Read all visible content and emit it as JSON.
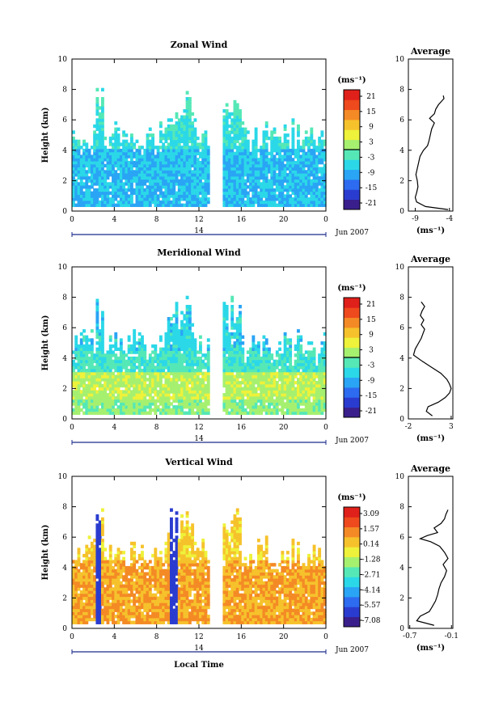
{
  "chart_data": [
    {
      "type": "heatmap",
      "title": "Zonal Wind",
      "ylabel": "Height (km)",
      "xlabel": "",
      "x_ticks": [
        "0",
        "4",
        "8",
        "12",
        "16",
        "20",
        "0"
      ],
      "y_ticks": [
        "0",
        "2",
        "4",
        "6",
        "8",
        "10"
      ],
      "xlim": [
        0,
        24
      ],
      "ylim": [
        0,
        10
      ],
      "day_label": "14",
      "month_label": "Jun 2007",
      "data_gap_hours": [
        13.2,
        14.1
      ],
      "colorbar": {
        "unit_label": "(ms⁻¹)",
        "tick_labels": [
          "21",
          "15",
          "9",
          "3",
          "-3",
          "-9",
          "-15",
          "-21"
        ],
        "range": [
          -24,
          24
        ],
        "zero_line": 0
      },
      "profile_bands": [
        {
          "h0": 0.3,
          "h1": 4.0,
          "value": -8
        },
        {
          "h0": 4.0,
          "h1": 6.0,
          "value": -5
        },
        {
          "h0": 6.0,
          "h1": 7.8,
          "value": -3
        }
      ],
      "average": {
        "title": "Average",
        "xlabel": "(ms⁻¹)",
        "x_ticks": [
          "-9",
          "-4"
        ],
        "xlim": [
          -10,
          -3.5
        ],
        "profile": {
          "height": [
            0.1,
            0.3,
            0.6,
            0.9,
            1.2,
            1.6,
            2.0,
            2.4,
            2.8,
            3.2,
            3.6,
            4.0,
            4.3,
            4.6,
            5.0,
            5.4,
            5.8,
            6.1,
            6.4,
            6.7,
            7.0,
            7.2,
            7.4,
            7.6
          ],
          "value": [
            -4.2,
            -7.5,
            -8.8,
            -9.0,
            -8.8,
            -8.6,
            -8.7,
            -8.9,
            -8.7,
            -8.5,
            -8.3,
            -7.8,
            -7.2,
            -7.0,
            -6.8,
            -6.6,
            -6.2,
            -6.9,
            -6.2,
            -6.0,
            -5.6,
            -5.2,
            -4.8,
            -4.9
          ]
        }
      }
    },
    {
      "type": "heatmap",
      "title": "Meridional Wind",
      "ylabel": "Height (km)",
      "xlabel": "",
      "x_ticks": [
        "0",
        "4",
        "8",
        "12",
        "16",
        "20",
        "0"
      ],
      "y_ticks": [
        "0",
        "2",
        "4",
        "6",
        "8",
        "10"
      ],
      "xlim": [
        0,
        24
      ],
      "ylim": [
        0,
        10
      ],
      "day_label": "14",
      "month_label": "Jun 2007",
      "data_gap_hours": [
        13.2,
        14.1
      ],
      "colorbar": {
        "unit_label": "(ms⁻¹)",
        "tick_labels": [
          "21",
          "15",
          "9",
          "3",
          "-3",
          "-9",
          "-15",
          "-21"
        ],
        "range": [
          -24,
          24
        ],
        "zero_line": 0
      },
      "profile_bands": [
        {
          "h0": 0.3,
          "h1": 1.2,
          "value": 1.0
        },
        {
          "h0": 1.2,
          "h1": 3.0,
          "value": 3.0
        },
        {
          "h0": 3.0,
          "h1": 4.5,
          "value": -3.0
        },
        {
          "h0": 4.5,
          "h1": 7.8,
          "value": -6.0
        }
      ],
      "average": {
        "title": "Average",
        "xlabel": "(ms⁻¹)",
        "x_ticks": [
          "-2",
          "3"
        ],
        "xlim": [
          -2,
          3.2
        ],
        "profile": {
          "height": [
            0.2,
            0.5,
            0.8,
            1.1,
            1.4,
            1.7,
            2.0,
            2.3,
            2.6,
            3.0,
            3.4,
            3.8,
            4.2,
            4.6,
            5.0,
            5.3,
            5.6,
            5.9,
            6.2,
            6.5,
            6.8,
            7.1,
            7.4,
            7.7
          ],
          "value": [
            0.8,
            0.1,
            0.3,
            1.5,
            2.3,
            2.8,
            3.0,
            2.8,
            2.5,
            1.8,
            0.7,
            -0.4,
            -1.4,
            -1.2,
            -0.8,
            -0.5,
            -0.3,
            -0.1,
            -0.5,
            -0.2,
            -0.6,
            -0.4,
            -0.1,
            -0.5
          ]
        }
      }
    },
    {
      "type": "heatmap",
      "title": "Vertical Wind",
      "ylabel": "Height (km)",
      "xlabel": "Local Time",
      "x_ticks": [
        "0",
        "4",
        "8",
        "12",
        "16",
        "20",
        "0"
      ],
      "y_ticks": [
        "0",
        "2",
        "4",
        "6",
        "8",
        "10"
      ],
      "xlim": [
        0,
        24
      ],
      "ylim": [
        0,
        10
      ],
      "day_label": "14",
      "month_label": "Jun 2007",
      "data_gap_hours": [
        13.2,
        14.1
      ],
      "colorbar": {
        "unit_label": "(ms⁻¹)",
        "tick_labels": [
          "3.09",
          "1.57",
          "0.14",
          "-1.28",
          "-2.71",
          "-4.14",
          "-5.57",
          "-7.08"
        ],
        "range": [
          -7.8,
          3.8
        ]
      },
      "profile_bands": [
        {
          "h0": 0.3,
          "h1": 4.5,
          "value": 0.9
        },
        {
          "h0": 4.5,
          "h1": 8.0,
          "value": 0.2
        }
      ],
      "average": {
        "title": "Average",
        "xlabel": "(ms⁻¹)",
        "x_ticks": [
          "-0.7",
          "-0.1"
        ],
        "xlim": [
          -0.72,
          -0.08
        ],
        "profile": {
          "height": [
            0.2,
            0.5,
            0.8,
            1.1,
            1.4,
            1.8,
            2.2,
            2.6,
            3.0,
            3.4,
            3.8,
            4.2,
            4.6,
            5.0,
            5.4,
            5.7,
            5.9,
            6.1,
            6.3,
            6.6,
            6.9,
            7.2,
            7.5,
            7.8
          ],
          "value": [
            -0.35,
            -0.6,
            -0.55,
            -0.42,
            -0.38,
            -0.33,
            -0.3,
            -0.28,
            -0.25,
            -0.2,
            -0.17,
            -0.22,
            -0.15,
            -0.2,
            -0.27,
            -0.4,
            -0.55,
            -0.45,
            -0.3,
            -0.35,
            -0.25,
            -0.2,
            -0.18,
            -0.15
          ]
        }
      }
    }
  ]
}
